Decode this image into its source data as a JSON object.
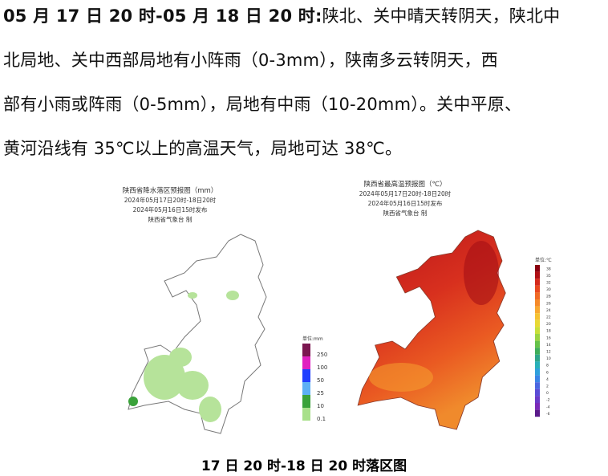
{
  "article": {
    "lead": "05 月 17 日 20 时-05 月 18 日 20 时:",
    "lines": [
      "陕北、关中晴天转阴天，陕北中",
      "北局地、关中西部局地有小阵雨（0-3mm），陕南多云转阴天，西",
      "部有小雨或阵雨（0-5mm），局地有中雨（10-20mm）。关中平原、",
      "黄河沿线有 35℃以上的高温天气，局地可达 38℃。"
    ]
  },
  "maps": [
    {
      "title": [
        "陕西省降水落区预报图（mm）",
        "2024年05月17日20时-18日20时",
        "2024年05月16日15时发布",
        "陕西省气象台 制"
      ],
      "legend_title": "单位:mm",
      "legend": [
        {
          "value": 250,
          "color": "#7b1650"
        },
        {
          "value": 100,
          "color": "#e020c0"
        },
        {
          "value": 50,
          "color": "#1f3fff"
        },
        {
          "value": 25,
          "color": "#5db0f5"
        },
        {
          "value": 10,
          "color": "#3aa23a"
        },
        {
          "value": 0.1,
          "color": "#a8e08a"
        }
      ]
    },
    {
      "title": [
        "陕西省最高温预报图（℃）",
        "2024年05月17日20时-18日20时",
        "2024年05月16日15时发布",
        "陕西省气象台 制"
      ],
      "legend_title": "单位:℃",
      "legend": [
        {
          "value": 38,
          "color": "#8a0010"
        },
        {
          "value": 35,
          "color": "#b01015"
        },
        {
          "value": 32,
          "color": "#d42a1c"
        },
        {
          "value": 30,
          "color": "#e8481f"
        },
        {
          "value": 28,
          "color": "#f06a25"
        },
        {
          "value": 26,
          "color": "#f58a2a"
        },
        {
          "value": 24,
          "color": "#f8a830"
        },
        {
          "value": 22,
          "color": "#f5c232"
        },
        {
          "value": 20,
          "color": "#e8d935"
        },
        {
          "value": 18,
          "color": "#c8df3a"
        },
        {
          "value": 16,
          "color": "#9bd442"
        },
        {
          "value": 14,
          "color": "#66c24a"
        },
        {
          "value": 12,
          "color": "#3fae5a"
        },
        {
          "value": 10,
          "color": "#2ea58a"
        },
        {
          "value": 8,
          "color": "#29b0b8"
        },
        {
          "value": 6,
          "color": "#2fa0dc"
        },
        {
          "value": 4,
          "color": "#3a84e6"
        },
        {
          "value": 2,
          "color": "#4a66e0"
        },
        {
          "value": 0,
          "color": "#5a4cd6"
        },
        {
          "value": -2,
          "color": "#6a3ac8"
        },
        {
          "value": -4,
          "color": "#7a2ab8"
        },
        {
          "value": -6,
          "color": "#5a1a8a"
        }
      ]
    }
  ],
  "caption": "17 日 20 时-18 日 20 时落区图"
}
